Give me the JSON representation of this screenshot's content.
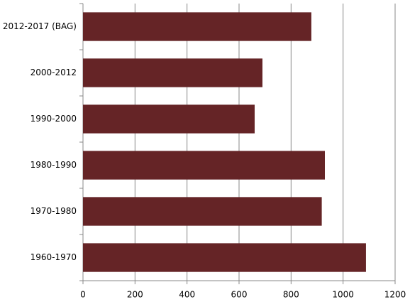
{
  "chart_data": {
    "type": "bar",
    "orientation": "horizontal",
    "categories": [
      "2012-2017 (BAG)",
      "2000-2012",
      "1990-2000",
      "1980-1990",
      "1970-1980",
      "1960-1970"
    ],
    "values": [
      878,
      690,
      660,
      930,
      918,
      1088
    ],
    "color": "#652426",
    "xlim": [
      0,
      1200
    ],
    "xticks": [
      0,
      200,
      400,
      600,
      800,
      1000,
      1200
    ],
    "grid": true
  }
}
